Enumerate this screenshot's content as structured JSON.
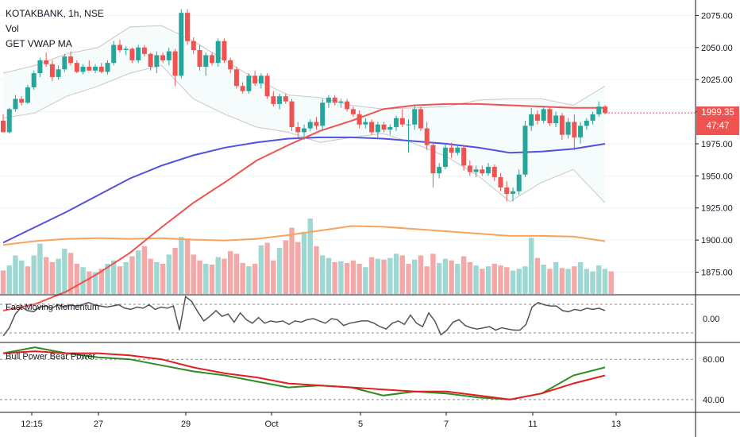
{
  "legend": {
    "symbol": "KOTAKBANK, 1h, NSE",
    "vol": "Vol",
    "vwap": "GET VWAP MA"
  },
  "panes": {
    "momentum_title": "Fast Moving Momentum",
    "bbp_title": "Bull Power Bear Power"
  },
  "last_price": {
    "value": "1999.35",
    "countdown": "47:47"
  },
  "colors": {
    "up": "#26a69a",
    "down": "#ef5350",
    "vol_up": "#9fd8d3",
    "vol_down": "#f4a9a8",
    "ma_fast": "#ef5350",
    "ma_slow": "#5250e0",
    "vol_ma": "#f7a35c",
    "bb": "#c8c8c8",
    "bb_fill": "#f6fbfb",
    "momentum": "#555555",
    "bull": "#2e8b24",
    "bear": "#e21d1d"
  },
  "chart_data": [
    {
      "type": "candlestick",
      "title": "KOTAKBANK, 1h, NSE",
      "y_ticks": [
        1875,
        1900,
        1925,
        1950,
        1975,
        2000,
        2025,
        2050,
        2075
      ],
      "ylim": [
        1858,
        2087
      ],
      "x_ticks": [
        "12:15",
        "27",
        "29",
        "Oct",
        "5",
        "7",
        "11",
        "13"
      ],
      "candles_ohlc": [
        [
          1993,
          1998,
          1984,
          1984
        ],
        [
          1984,
          2003,
          1983,
          2002
        ],
        [
          2002,
          2013,
          2000,
          2010
        ],
        [
          2010,
          2012,
          2005,
          2007
        ],
        [
          2007,
          2021,
          2006,
          2019
        ],
        [
          2019,
          2032,
          2017,
          2030
        ],
        [
          2030,
          2042,
          2027,
          2040
        ],
        [
          2040,
          2046,
          2035,
          2037
        ],
        [
          2037,
          2040,
          2024,
          2027
        ],
        [
          2027,
          2036,
          2025,
          2033
        ],
        [
          2033,
          2045,
          2031,
          2043
        ],
        [
          2043,
          2047,
          2036,
          2038
        ],
        [
          2038,
          2040,
          2030,
          2031
        ],
        [
          2031,
          2037,
          2029,
          2035
        ],
        [
          2035,
          2040,
          2032,
          2032
        ],
        [
          2032,
          2037,
          2030,
          2035
        ],
        [
          2035,
          2038,
          2030,
          2031
        ],
        [
          2031,
          2040,
          2029,
          2038
        ],
        [
          2038,
          2055,
          2036,
          2052
        ],
        [
          2052,
          2056,
          2046,
          2048
        ],
        [
          2048,
          2051,
          2044,
          2049
        ],
        [
          2049,
          2050,
          2038,
          2040
        ],
        [
          2040,
          2052,
          2038,
          2050
        ],
        [
          2050,
          2052,
          2043,
          2045
        ],
        [
          2045,
          2046,
          2032,
          2035
        ],
        [
          2035,
          2047,
          2030,
          2044
        ],
        [
          2044,
          2046,
          2038,
          2040
        ],
        [
          2040,
          2050,
          2036,
          2047
        ],
        [
          2047,
          2049,
          2020,
          2028
        ],
        [
          2028,
          2080,
          2026,
          2077
        ],
        [
          2077,
          2080,
          2052,
          2055
        ],
        [
          2055,
          2058,
          2045,
          2048
        ],
        [
          2048,
          2052,
          2032,
          2035
        ],
        [
          2035,
          2046,
          2028,
          2044
        ],
        [
          2044,
          2046,
          2036,
          2038
        ],
        [
          2038,
          2057,
          2035,
          2055
        ],
        [
          2055,
          2057,
          2038,
          2040
        ],
        [
          2040,
          2042,
          2030,
          2033
        ],
        [
          2033,
          2035,
          2018,
          2020
        ],
        [
          2020,
          2023,
          2014,
          2016
        ],
        [
          2016,
          2030,
          2014,
          2028
        ],
        [
          2028,
          2032,
          2020,
          2022
        ],
        [
          2022,
          2030,
          2018,
          2028
        ],
        [
          2028,
          2030,
          2010,
          2012
        ],
        [
          2012,
          2016,
          2004,
          2006
        ],
        [
          2006,
          2014,
          2002,
          2012
        ],
        [
          2012,
          2014,
          2006,
          2008
        ],
        [
          2008,
          2010,
          1985,
          1988
        ],
        [
          1988,
          1992,
          1980,
          1984
        ],
        [
          1984,
          1990,
          1978,
          1987
        ],
        [
          1987,
          1994,
          1985,
          1992
        ],
        [
          1992,
          1996,
          1986,
          1989
        ],
        [
          1989,
          2010,
          1986,
          2007
        ],
        [
          2007,
          2013,
          2003,
          2011
        ],
        [
          2011,
          2013,
          2005,
          2007
        ],
        [
          2007,
          2010,
          2003,
          2008
        ],
        [
          2008,
          2010,
          2000,
          2002
        ],
        [
          2002,
          2004,
          1996,
          1998
        ],
        [
          1998,
          2001,
          1987,
          1990
        ],
        [
          1990,
          1995,
          1987,
          1992
        ],
        [
          1992,
          1994,
          1982,
          1984
        ],
        [
          1984,
          1992,
          1979,
          1990
        ],
        [
          1990,
          1992,
          1984,
          1986
        ],
        [
          1986,
          1990,
          1982,
          1988
        ],
        [
          1988,
          1997,
          1985,
          1995
        ],
        [
          1995,
          2002,
          1988,
          1990
        ],
        [
          1990,
          1994,
          1968,
          1990
        ],
        [
          1990,
          2005,
          1986,
          2002
        ],
        [
          2002,
          2004,
          1985,
          1987
        ],
        [
          1987,
          1992,
          1970,
          1974
        ],
        [
          1974,
          1976,
          1941,
          1952
        ],
        [
          1952,
          1960,
          1948,
          1957
        ],
        [
          1957,
          1975,
          1955,
          1972
        ],
        [
          1972,
          1976,
          1964,
          1968
        ],
        [
          1968,
          1974,
          1966,
          1972
        ],
        [
          1972,
          1974,
          1954,
          1958
        ],
        [
          1958,
          1962,
          1950,
          1953
        ],
        [
          1953,
          1958,
          1949,
          1955
        ],
        [
          1955,
          1958,
          1950,
          1952
        ],
        [
          1952,
          1960,
          1950,
          1957
        ],
        [
          1957,
          1959,
          1946,
          1949
        ],
        [
          1949,
          1952,
          1938,
          1941
        ],
        [
          1941,
          1946,
          1930,
          1936
        ],
        [
          1936,
          1941,
          1930,
          1938
        ],
        [
          1938,
          1955,
          1935,
          1951
        ],
        [
          1951,
          1993,
          1949,
          1989
        ],
        [
          1989,
          2003,
          1985,
          1998
        ],
        [
          1998,
          2001,
          1990,
          1993
        ],
        [
          1993,
          2004,
          1991,
          2002
        ],
        [
          2002,
          2004,
          1989,
          1991
        ],
        [
          1991,
          2000,
          1988,
          1997
        ],
        [
          1997,
          1999,
          1978,
          1982
        ],
        [
          1982,
          1995,
          1979,
          1992
        ],
        [
          1992,
          1998,
          1970,
          1980
        ],
        [
          1980,
          1992,
          1975,
          1989
        ],
        [
          1989,
          1995,
          1986,
          1993
        ],
        [
          1993,
          2000,
          1990,
          1998
        ],
        [
          1998,
          2008,
          1996,
          2004
        ],
        [
          2004,
          2005,
          1998,
          1999
        ]
      ],
      "ma_fast_values": [
        1845,
        1850,
        1860,
        1874,
        1890,
        1910,
        1929,
        1945,
        1962,
        1974,
        1985,
        1993,
        2002,
        2005,
        2006,
        2006,
        2005,
        2004,
        2003,
        2003
      ],
      "ma_slow_values": [
        1898,
        1910,
        1922,
        1935,
        1948,
        1958,
        1966,
        1972,
        1976,
        1979,
        1980,
        1980,
        1979,
        1977,
        1975,
        1972,
        1968,
        1969,
        1971,
        1975
      ],
      "bb_upper_values": [
        2030,
        2036,
        2045,
        2050,
        2066,
        2067,
        2055,
        2040,
        2025,
        2013,
        2011,
        2005,
        2002,
        2003,
        2004,
        2009,
        2010,
        2010,
        2005,
        2020
      ],
      "bb_lower_values": [
        1995,
        1999,
        2012,
        2020,
        2030,
        2036,
        2010,
        1998,
        1988,
        1984,
        1976,
        1980,
        1983,
        1975,
        1965,
        1950,
        1930,
        1945,
        1955,
        1929
      ]
    },
    {
      "type": "bar",
      "title": "Vol",
      "values": [
        28,
        34,
        46,
        40,
        33,
        46,
        60,
        44,
        38,
        42,
        54,
        49,
        36,
        32,
        27,
        26,
        30,
        36,
        40,
        33,
        38,
        45,
        52,
        57,
        42,
        38,
        36,
        47,
        55,
        68,
        66,
        47,
        40,
        36,
        35,
        44,
        42,
        51,
        48,
        37,
        33,
        36,
        58,
        61,
        40,
        55,
        64,
        79,
        62,
        74,
        90,
        57,
        46,
        43,
        38,
        39,
        37,
        40,
        36,
        32,
        44,
        42,
        41,
        43,
        48,
        46,
        36,
        41,
        46,
        33,
        48,
        37,
        42,
        40,
        36,
        45,
        38,
        34,
        30,
        33,
        36,
        34,
        32,
        28,
        30,
        33,
        67,
        43,
        35,
        30,
        38,
        31,
        30,
        33,
        38,
        30,
        27,
        34,
        30,
        27
      ],
      "up_flags": [
        0,
        1,
        1,
        1,
        0,
        1,
        1,
        0,
        0,
        1,
        1,
        0,
        0,
        1,
        0,
        1,
        0,
        1,
        1,
        0,
        1,
        0,
        1,
        0,
        0,
        1,
        0,
        1,
        0,
        1,
        0,
        0,
        0,
        1,
        0,
        1,
        0,
        0,
        0,
        0,
        1,
        0,
        1,
        0,
        0,
        1,
        0,
        0,
        0,
        1,
        1,
        0,
        1,
        1,
        0,
        1,
        0,
        0,
        0,
        1,
        0,
        1,
        0,
        1,
        1,
        0,
        0,
        1,
        0,
        0,
        0,
        1,
        1,
        0,
        1,
        0,
        0,
        1,
        0,
        1,
        0,
        0,
        0,
        1,
        1,
        1,
        1,
        0,
        1,
        0,
        1,
        0,
        1,
        0,
        1,
        1,
        1,
        1,
        1,
        0
      ],
      "vol_ma_values": [
        0.65,
        0.7,
        0.73,
        0.74,
        0.73,
        0.74,
        0.72,
        0.71,
        0.73,
        0.78,
        0.84,
        0.9,
        0.89,
        0.86,
        0.83,
        0.8,
        0.77,
        0.77,
        0.76,
        0.7
      ]
    },
    {
      "type": "line",
      "title": "Fast Moving Momentum",
      "y_ticks": [
        0
      ],
      "ylim": [
        -1,
        1
      ],
      "values": [
        -0.75,
        -0.4,
        0.2,
        0.5,
        0.35,
        0.3,
        0.5,
        0.55,
        0.45,
        0.6,
        0.5,
        0.6,
        0.55,
        0.6,
        0.7,
        0.6,
        0.55,
        0.5,
        0.55,
        0.6,
        0.45,
        0.4,
        0.5,
        0.45,
        0.6,
        0.4,
        0.5,
        0.45,
        0.55,
        -0.5,
        0.95,
        0.75,
        0.3,
        -0.1,
        0.1,
        0.35,
        0.1,
        0.2,
        -0.15,
        0.25,
        -0.05,
        -0.2,
        0.05,
        -0.2,
        -0.1,
        -0.15,
        -0.1,
        -0.25,
        -0.1,
        -0.15,
        -0.05,
        0.0,
        -0.1,
        -0.2,
        0.0,
        -0.05,
        -0.3,
        -0.2,
        -0.15,
        -0.1,
        -0.1,
        -0.2,
        -0.35,
        -0.45,
        -0.2,
        -0.1,
        -0.25,
        0.15,
        -0.2,
        -0.35,
        0.25,
        -0.1,
        -0.7,
        -0.5,
        -0.15,
        -0.05,
        -0.3,
        -0.4,
        -0.45,
        -0.4,
        -0.35,
        -0.5,
        -0.4,
        -0.45,
        -0.5,
        -0.5,
        -0.25,
        0.5,
        0.7,
        0.6,
        0.55,
        0.55,
        0.35,
        0.3,
        0.4,
        0.35,
        0.45,
        0.4,
        0.45,
        0.35
      ]
    },
    {
      "type": "line",
      "title": "Bull Power Bear Power",
      "y_ticks": [
        40,
        60
      ],
      "ylim": [
        34,
        68
      ],
      "series": [
        {
          "values": [
            63,
            66,
            63,
            61,
            60,
            57,
            54,
            52,
            49,
            46,
            47,
            46,
            42,
            44,
            43,
            41,
            40,
            43,
            52,
            56
          ]
        },
        {
          "values": [
            63,
            64,
            63,
            63,
            62,
            60,
            56,
            53,
            51,
            48,
            47,
            46,
            45,
            44,
            44,
            42,
            40,
            43,
            48,
            52
          ]
        }
      ]
    }
  ]
}
